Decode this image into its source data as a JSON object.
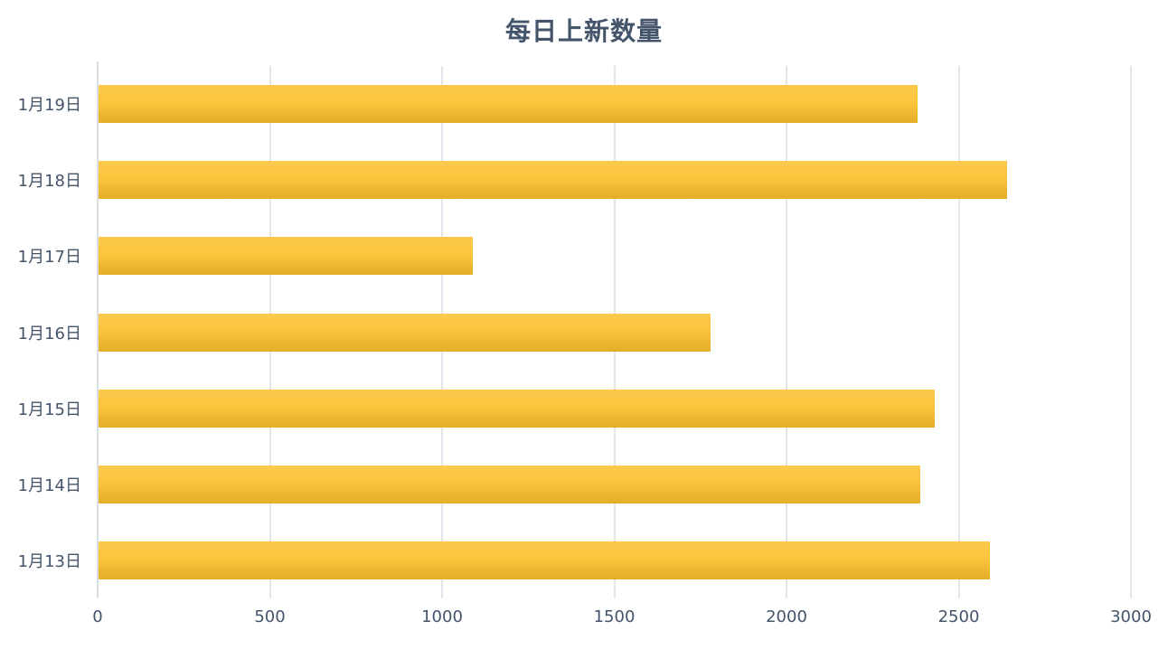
{
  "title": "每日上新数量",
  "chart_data": {
    "type": "bar",
    "orientation": "horizontal",
    "title": "每日上新数量",
    "categories": [
      "1月19日",
      "1月18日",
      "1月17日",
      "1月16日",
      "1月15日",
      "1月14日",
      "1月13日"
    ],
    "values": [
      2378,
      2638,
      1087,
      1776,
      2427,
      2386,
      2587
    ],
    "xlabel": "",
    "ylabel": "",
    "xlim": [
      0,
      3000
    ],
    "x_ticks": [
      0,
      500,
      1000,
      1500,
      2000,
      2500,
      3000
    ],
    "grid": true,
    "legend": false,
    "colors": {
      "bar_gradient_top": "#FCC94E",
      "bar_gradient_bottom": "#E3AE28",
      "title_text": "#44546A",
      "axis_text": "#44546A",
      "gridline": "#E2E5EB",
      "axis_line": "#D9DEE5",
      "background": "#FFFFFF"
    }
  }
}
